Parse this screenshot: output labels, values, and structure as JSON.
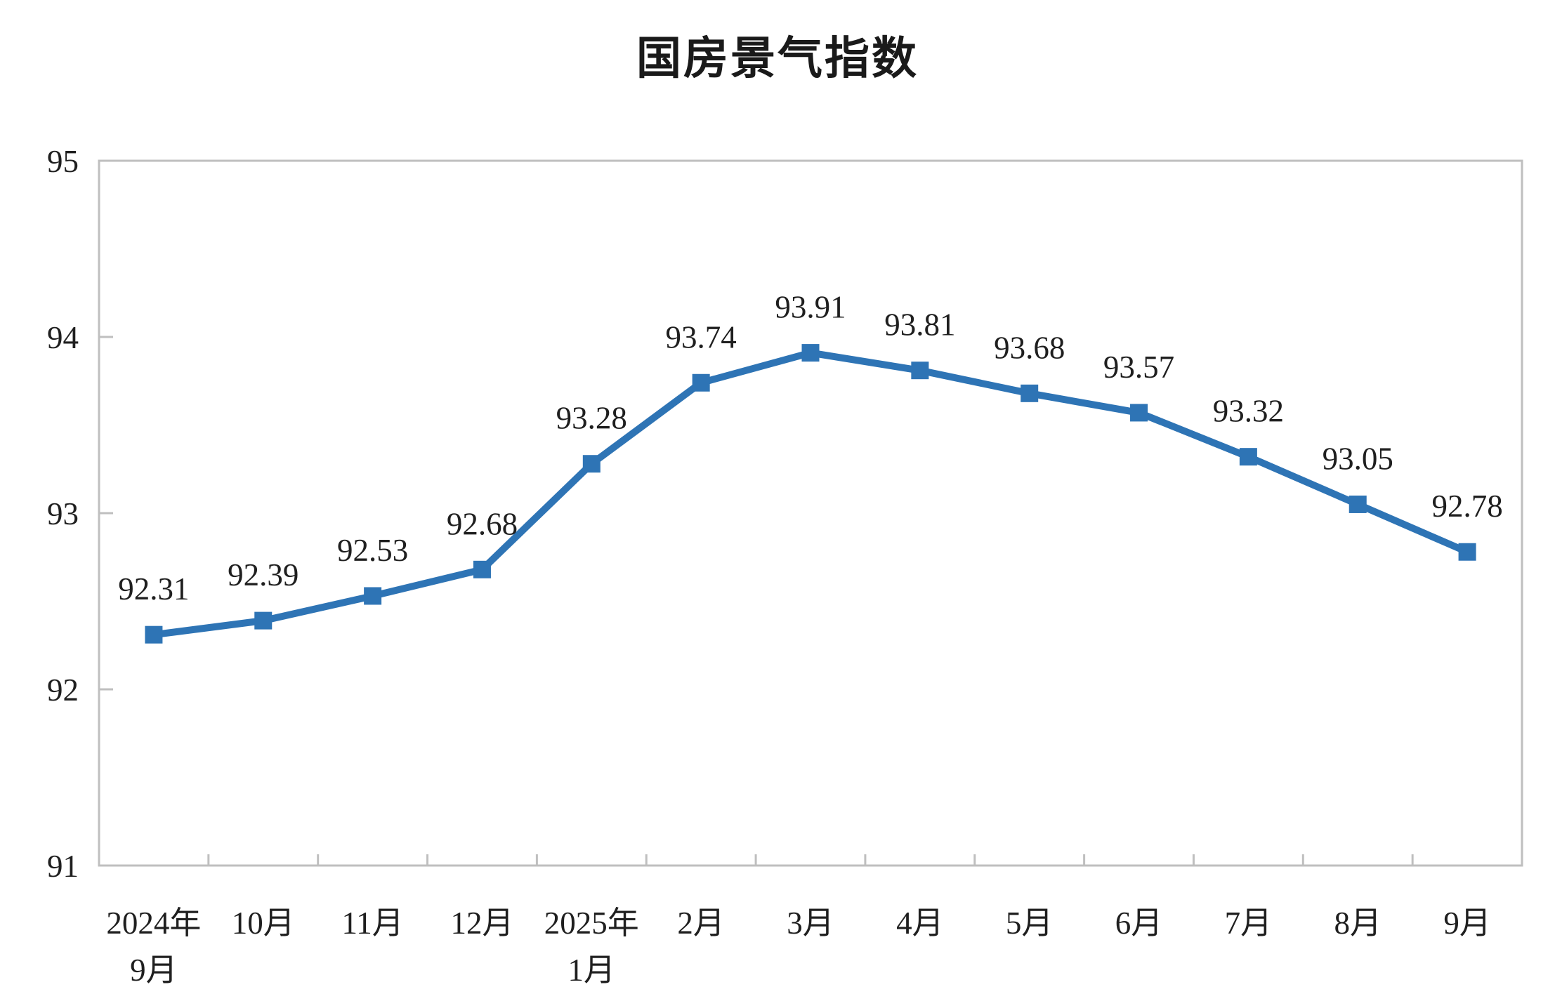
{
  "page": {
    "background_color": "#ffffff"
  },
  "chart_data": {
    "type": "line",
    "title": "国房景气指数",
    "categories": [
      [
        "2024年",
        "9月"
      ],
      [
        "10月"
      ],
      [
        "11月"
      ],
      [
        "12月"
      ],
      [
        "2025年",
        "1月"
      ],
      [
        "2月"
      ],
      [
        "3月"
      ],
      [
        "4月"
      ],
      [
        "5月"
      ],
      [
        "6月"
      ],
      [
        "7月"
      ],
      [
        "8月"
      ],
      [
        "9月"
      ]
    ],
    "series": [
      {
        "name": "国房景气指数",
        "values": [
          92.31,
          92.39,
          92.53,
          92.68,
          93.28,
          93.74,
          93.91,
          93.81,
          93.68,
          93.57,
          93.32,
          93.05,
          92.78
        ]
      }
    ],
    "data_labels": [
      "92.31",
      "92.39",
      "92.53",
      "92.68",
      "93.28",
      "93.74",
      "93.91",
      "93.81",
      "93.68",
      "93.57",
      "93.32",
      "93.05",
      "92.78"
    ],
    "y_axis": {
      "min": 91,
      "max": 95,
      "tick_interval": 1,
      "tick_labels": [
        "91",
        "92",
        "93",
        "94",
        "95"
      ]
    },
    "grid": false,
    "legend_position": "none",
    "line_color": "#2E74B5",
    "marker_shape": "square",
    "marker_color": "#2E74B5",
    "axis_color": "#BFBFBF",
    "label_color": "#1f1f1f"
  }
}
